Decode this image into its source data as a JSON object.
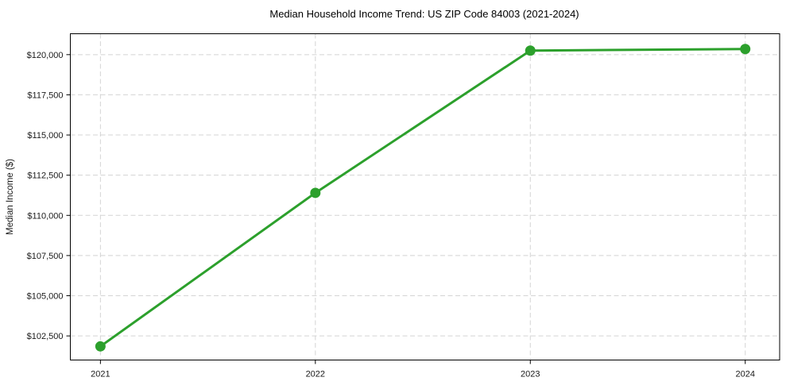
{
  "figure": {
    "background": "#ffffff"
  },
  "chart_data": {
    "type": "line",
    "title": "Median Household Income Trend: US ZIP Code 84003 (2021-2024)",
    "xlabel": "",
    "ylabel": "Median Income ($)",
    "x": [
      2021,
      2022,
      2023,
      2024
    ],
    "x_tick_labels": [
      "2021",
      "2022",
      "2023",
      "2024"
    ],
    "series": [
      {
        "name": "Median household income",
        "values": [
          101850,
          111400,
          120250,
          120350
        ],
        "color": "#2ca02c",
        "line_width": 3,
        "marker": "circle",
        "marker_size": 6.5
      }
    ],
    "xlim": [
      2020.86,
      2024.16
    ],
    "ylim": [
      101000,
      121300
    ],
    "y_ticks": [
      102500,
      105000,
      107500,
      110000,
      112500,
      115000,
      117500,
      120000
    ],
    "y_tick_labels": [
      "$102,500",
      "$105,000",
      "$107,500",
      "$110,000",
      "$112,500",
      "$115,000",
      "$117,500",
      "$120,000"
    ],
    "grid": true,
    "grid_style": "dashed",
    "grid_color": "#d4d4d4",
    "axis_color": "#000000",
    "tick_label_color": "#1a1a1a",
    "legend": "none"
  }
}
